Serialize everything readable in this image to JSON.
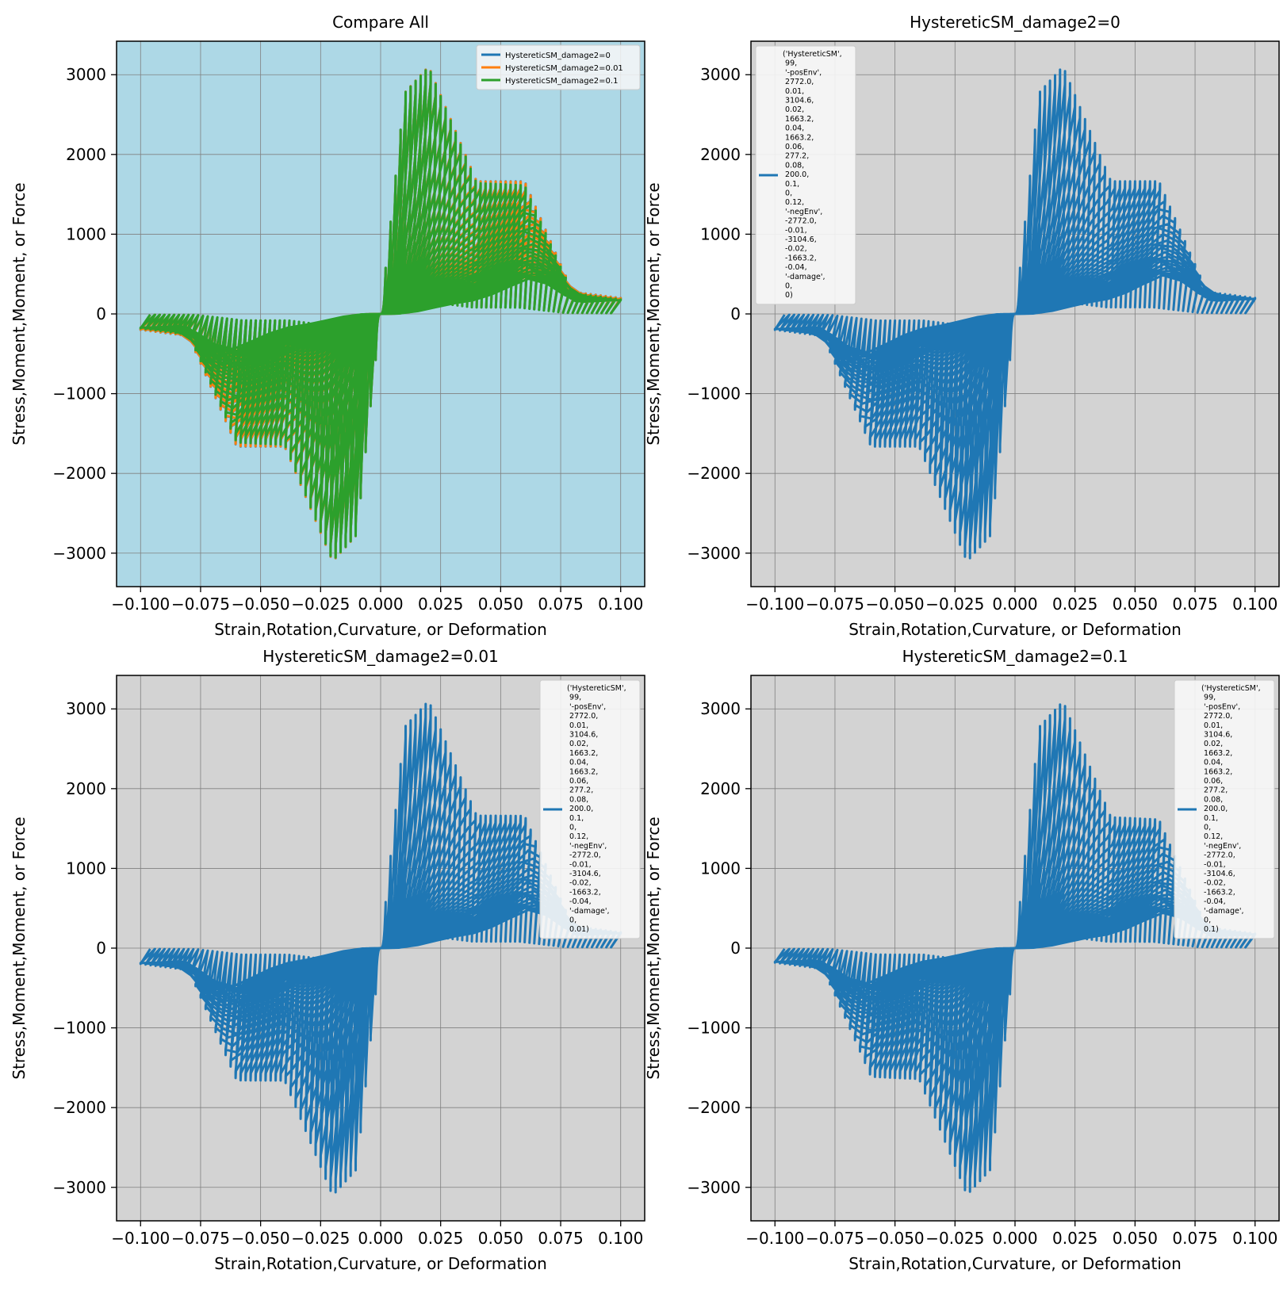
{
  "figure": {
    "background": "#ffffff"
  },
  "chart_data": [
    {
      "type": "line",
      "title": "Compare All",
      "xlabel": "Strain,Rotation,Curvature, or Deformation",
      "ylabel": "Stress,Moment,Moment, or Force",
      "xlim": [
        -0.11,
        0.11
      ],
      "ylim": [
        -3420,
        3420
      ],
      "xticks": [
        -0.1,
        -0.075,
        -0.05,
        -0.025,
        0,
        0.025,
        0.05,
        0.075,
        0.1
      ],
      "xtick_labels": [
        "−0.100",
        "−0.075",
        "−0.050",
        "−0.025",
        "0.000",
        "0.025",
        "0.050",
        "0.075",
        "0.100"
      ],
      "yticks": [
        -3000,
        -2000,
        -1000,
        0,
        1000,
        2000,
        3000
      ],
      "ytick_labels": [
        "−3000",
        "−2000",
        "−1000",
        "0",
        "1000",
        "2000",
        "3000"
      ],
      "grid": true,
      "background": "#add8e6",
      "legend": {
        "placement": "top-right",
        "style": "short"
      },
      "series": [
        {
          "name": "HystereticSM_damage2=0",
          "color": "#1f77b4",
          "damage": 0
        },
        {
          "name": "HystereticSM_damage2=0.01",
          "color": "#ff7f0e",
          "damage": 0.01
        },
        {
          "name": "HystereticSM_damage2=0.1",
          "color": "#2ca02c",
          "damage": 0.1
        }
      ]
    },
    {
      "type": "line",
      "title": "HystereticSM_damage2=0",
      "xlabel": "Strain,Rotation,Curvature, or Deformation",
      "ylabel": "Stress,Moment,Moment, or Force",
      "xlim": [
        -0.11,
        0.11
      ],
      "ylim": [
        -3420,
        3420
      ],
      "xticks": [
        -0.1,
        -0.075,
        -0.05,
        -0.025,
        0,
        0.025,
        0.05,
        0.075,
        0.1
      ],
      "xtick_labels": [
        "−0.100",
        "−0.075",
        "−0.050",
        "−0.025",
        "0.000",
        "0.025",
        "0.050",
        "0.075",
        "0.100"
      ],
      "yticks": [
        -3000,
        -2000,
        -1000,
        0,
        1000,
        2000,
        3000
      ],
      "ytick_labels": [
        "−3000",
        "−2000",
        "−1000",
        "0",
        "1000",
        "2000",
        "3000"
      ],
      "grid": true,
      "background": "#d3d3d3",
      "legend": {
        "placement": "top-left",
        "style": "multiline"
      },
      "series": [
        {
          "name": "('HystereticSM',\n 99,\n '-posEnv',\n 2772.0,\n 0.01,\n 3104.6,\n 0.02,\n 1663.2,\n 0.04,\n 1663.2,\n 0.06,\n 277.2,\n 0.08,\n 200.0,\n 0.1,\n 0,\n 0.12,\n '-negEnv',\n -2772.0,\n -0.01,\n -3104.6,\n -0.02,\n -1663.2,\n -0.04,\n '-damage',\n 0,\n 0)",
          "color": "#1f77b4",
          "damage": 0
        }
      ]
    },
    {
      "type": "line",
      "title": "HystereticSM_damage2=0.01",
      "xlabel": "Strain,Rotation,Curvature, or Deformation",
      "ylabel": "Stress,Moment,Moment, or Force",
      "xlim": [
        -0.11,
        0.11
      ],
      "ylim": [
        -3420,
        3420
      ],
      "xticks": [
        -0.1,
        -0.075,
        -0.05,
        -0.025,
        0,
        0.025,
        0.05,
        0.075,
        0.1
      ],
      "xtick_labels": [
        "−0.100",
        "−0.075",
        "−0.050",
        "−0.025",
        "0.000",
        "0.025",
        "0.050",
        "0.075",
        "0.100"
      ],
      "yticks": [
        -3000,
        -2000,
        -1000,
        0,
        1000,
        2000,
        3000
      ],
      "ytick_labels": [
        "−3000",
        "−2000",
        "−1000",
        "0",
        "1000",
        "2000",
        "3000"
      ],
      "grid": true,
      "background": "#d3d3d3",
      "legend": {
        "placement": "top-right",
        "style": "multiline"
      },
      "series": [
        {
          "name": "('HystereticSM',\n 99,\n '-posEnv',\n 2772.0,\n 0.01,\n 3104.6,\n 0.02,\n 1663.2,\n 0.04,\n 1663.2,\n 0.06,\n 277.2,\n 0.08,\n 200.0,\n 0.1,\n 0,\n 0.12,\n '-negEnv',\n -2772.0,\n -0.01,\n -3104.6,\n -0.02,\n -1663.2,\n -0.04,\n '-damage',\n 0,\n 0.01)",
          "color": "#1f77b4",
          "damage": 0.01
        }
      ]
    },
    {
      "type": "line",
      "title": "HystereticSM_damage2=0.1",
      "xlabel": "Strain,Rotation,Curvature, or Deformation",
      "ylabel": "Stress,Moment,Moment, or Force",
      "xlim": [
        -0.11,
        0.11
      ],
      "ylim": [
        -3420,
        3420
      ],
      "xticks": [
        -0.1,
        -0.075,
        -0.05,
        -0.025,
        0,
        0.025,
        0.05,
        0.075,
        0.1
      ],
      "xtick_labels": [
        "−0.100",
        "−0.075",
        "−0.050",
        "−0.025",
        "0.000",
        "0.025",
        "0.050",
        "0.075",
        "0.100"
      ],
      "yticks": [
        -3000,
        -2000,
        -1000,
        0,
        1000,
        2000,
        3000
      ],
      "ytick_labels": [
        "−3000",
        "−2000",
        "−1000",
        "0",
        "1000",
        "2000",
        "3000"
      ],
      "grid": true,
      "background": "#d3d3d3",
      "legend": {
        "placement": "top-right",
        "style": "multiline"
      },
      "series": [
        {
          "name": "('HystereticSM',\n 99,\n '-posEnv',\n 2772.0,\n 0.01,\n 3104.6,\n 0.02,\n 1663.2,\n 0.04,\n 1663.2,\n 0.06,\n 277.2,\n 0.08,\n 200.0,\n 0.1,\n 0,\n 0.12,\n '-negEnv',\n -2772.0,\n -0.01,\n -3104.6,\n -0.02,\n -1663.2,\n -0.04,\n '-damage',\n 0,\n 0.1)",
          "color": "#1f77b4",
          "damage": 0.1
        }
      ]
    }
  ]
}
